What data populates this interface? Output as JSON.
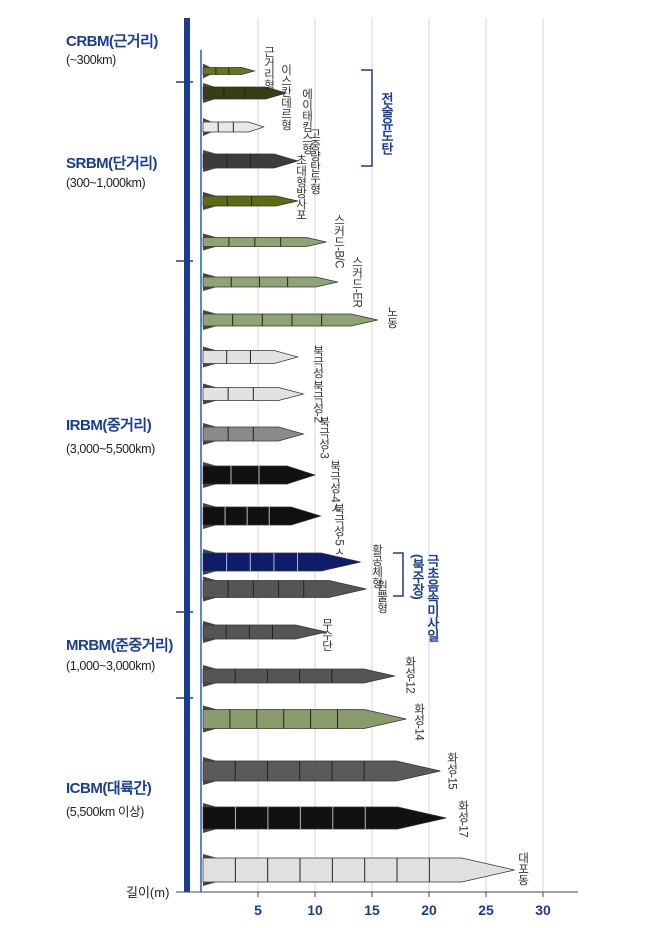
{
  "categories": [
    {
      "title": "CRBM(근거리)",
      "range": "(~300km)"
    },
    {
      "title": "SRBM(단거리)",
      "range": "(300~1,000km)"
    },
    {
      "title": "IRBM(중거리)",
      "range": "(3,000~5,500km)"
    },
    {
      "title": "MRBM(준중거리)",
      "range": "(1,000~3,000km)"
    },
    {
      "title": "ICBM(대륙간)",
      "range": "(5,500km 이상)"
    }
  ],
  "axis": {
    "label": "길이(m)",
    "ticks": [
      "5",
      "10",
      "15",
      "20",
      "25",
      "30"
    ]
  },
  "groups": {
    "tactical": "전술유도탄",
    "hypersonic": "극초음속미사일\n(북주장)"
  },
  "missiles": [
    {
      "name": "근거리형",
      "length_m": 4.7,
      "color": "#6b7320"
    },
    {
      "name": "이스칸데르형",
      "length_m": 7.5,
      "color": "#3a3d12"
    },
    {
      "name": "에이태킴스형",
      "length_m": 5.5,
      "color": "#e8e8e8"
    },
    {
      "name": "고중량탄두형",
      "length_m": 8.5,
      "color": "#3c3c3c"
    },
    {
      "name": "초대형방사포",
      "length_m": 8.5,
      "color": "#5e6b12"
    },
    {
      "name": "스커드-B/C",
      "length_m": 11,
      "color": "#8fa474"
    },
    {
      "name": "스커드-ER",
      "length_m": 12,
      "color": "#8fa474"
    },
    {
      "name": "노동",
      "length_m": 15.5,
      "color": "#8fa474"
    },
    {
      "name": "북극성",
      "length_m": 8.5,
      "color": "#e2e2e2"
    },
    {
      "name": "북극성-2",
      "length_m": 9,
      "color": "#e2e2e2"
    },
    {
      "name": "북극성-3",
      "length_m": 9,
      "color": "#8a8a8a"
    },
    {
      "name": "북극성-4ㅅ",
      "length_m": 10,
      "color": "#111111"
    },
    {
      "name": "북극성-5ㅅ",
      "length_m": 10.5,
      "color": "#111111"
    },
    {
      "name": "활공체형",
      "length_m": 14,
      "color": "#0f1b6b"
    },
    {
      "name": "원뿔형",
      "length_m": 14.5,
      "color": "#555555"
    },
    {
      "name": "무수단",
      "length_m": 11,
      "color": "#555555"
    },
    {
      "name": "화성-12",
      "length_m": 17,
      "color": "#555555"
    },
    {
      "name": "화성-14",
      "length_m": 18,
      "color": "#8a9a6a"
    },
    {
      "name": "화성-15",
      "length_m": 21,
      "color": "#5a5a5a"
    },
    {
      "name": "화성-17",
      "length_m": 21.5,
      "color": "#111111"
    },
    {
      "name": "대포동",
      "length_m": 27.5,
      "color": "#e0e0e0"
    }
  ]
}
